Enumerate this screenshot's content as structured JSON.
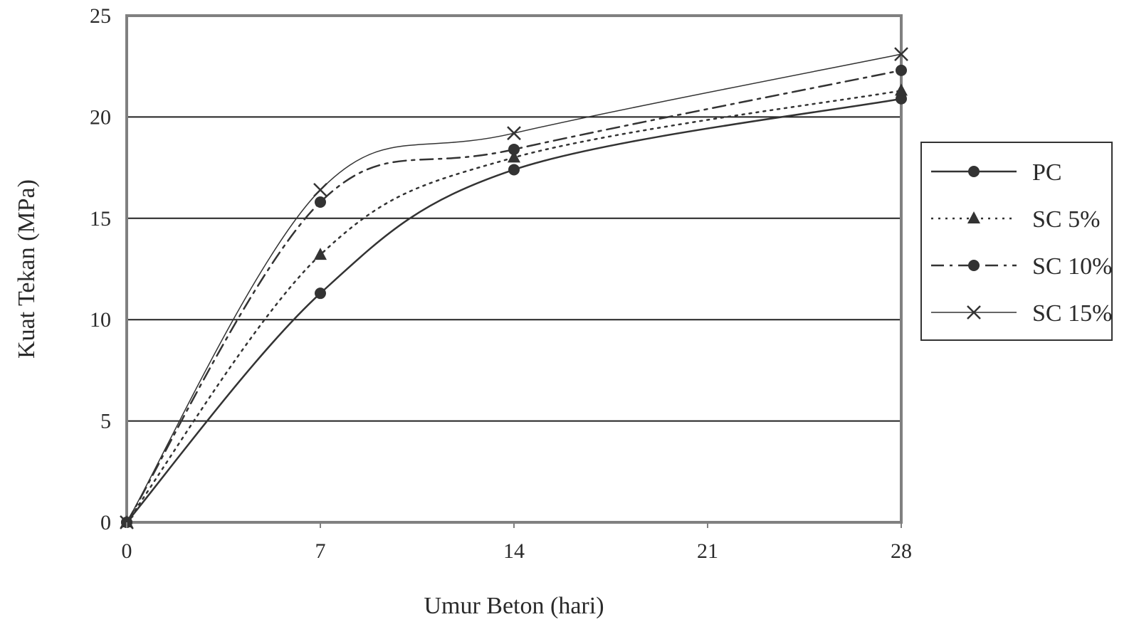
{
  "chart_data": {
    "type": "line",
    "title": "",
    "xlabel": "Umur Beton (hari)",
    "ylabel": "Kuat Tekan (MPa)",
    "x": [
      0,
      7,
      14,
      28
    ],
    "x_ticks": [
      "0",
      "7",
      "14",
      "21",
      "28"
    ],
    "x_tick_values": [
      0,
      7,
      14,
      21,
      28
    ],
    "y_ticks": [
      "0",
      "5",
      "10",
      "15",
      "20",
      "25"
    ],
    "y_tick_values": [
      0,
      5,
      10,
      15,
      20,
      25
    ],
    "xlim": [
      0,
      28
    ],
    "ylim": [
      0,
      25
    ],
    "grid": "horizontal",
    "legend_position": "right",
    "series": [
      {
        "name": "PC",
        "values": [
          0,
          11.3,
          17.4,
          20.9
        ],
        "marker": "dot",
        "dash": "solid",
        "stroke_width": 2.5
      },
      {
        "name": "SC 5%",
        "values": [
          0,
          13.2,
          18.0,
          21.3
        ],
        "marker": "triangle",
        "dash": "dotted",
        "stroke_width": 2.5
      },
      {
        "name": "SC 10%",
        "values": [
          0,
          15.8,
          18.4,
          22.3
        ],
        "marker": "dot",
        "dash": "dashdot",
        "stroke_width": 2.5
      },
      {
        "name": "SC 15%",
        "values": [
          0,
          16.4,
          19.2,
          23.1
        ],
        "marker": "cross",
        "dash": "solid",
        "stroke_width": 1.5
      }
    ],
    "colors": {
      "line": "#333333",
      "grid": "#222222",
      "frame": "#808080",
      "text": "#2a2a2a"
    }
  }
}
